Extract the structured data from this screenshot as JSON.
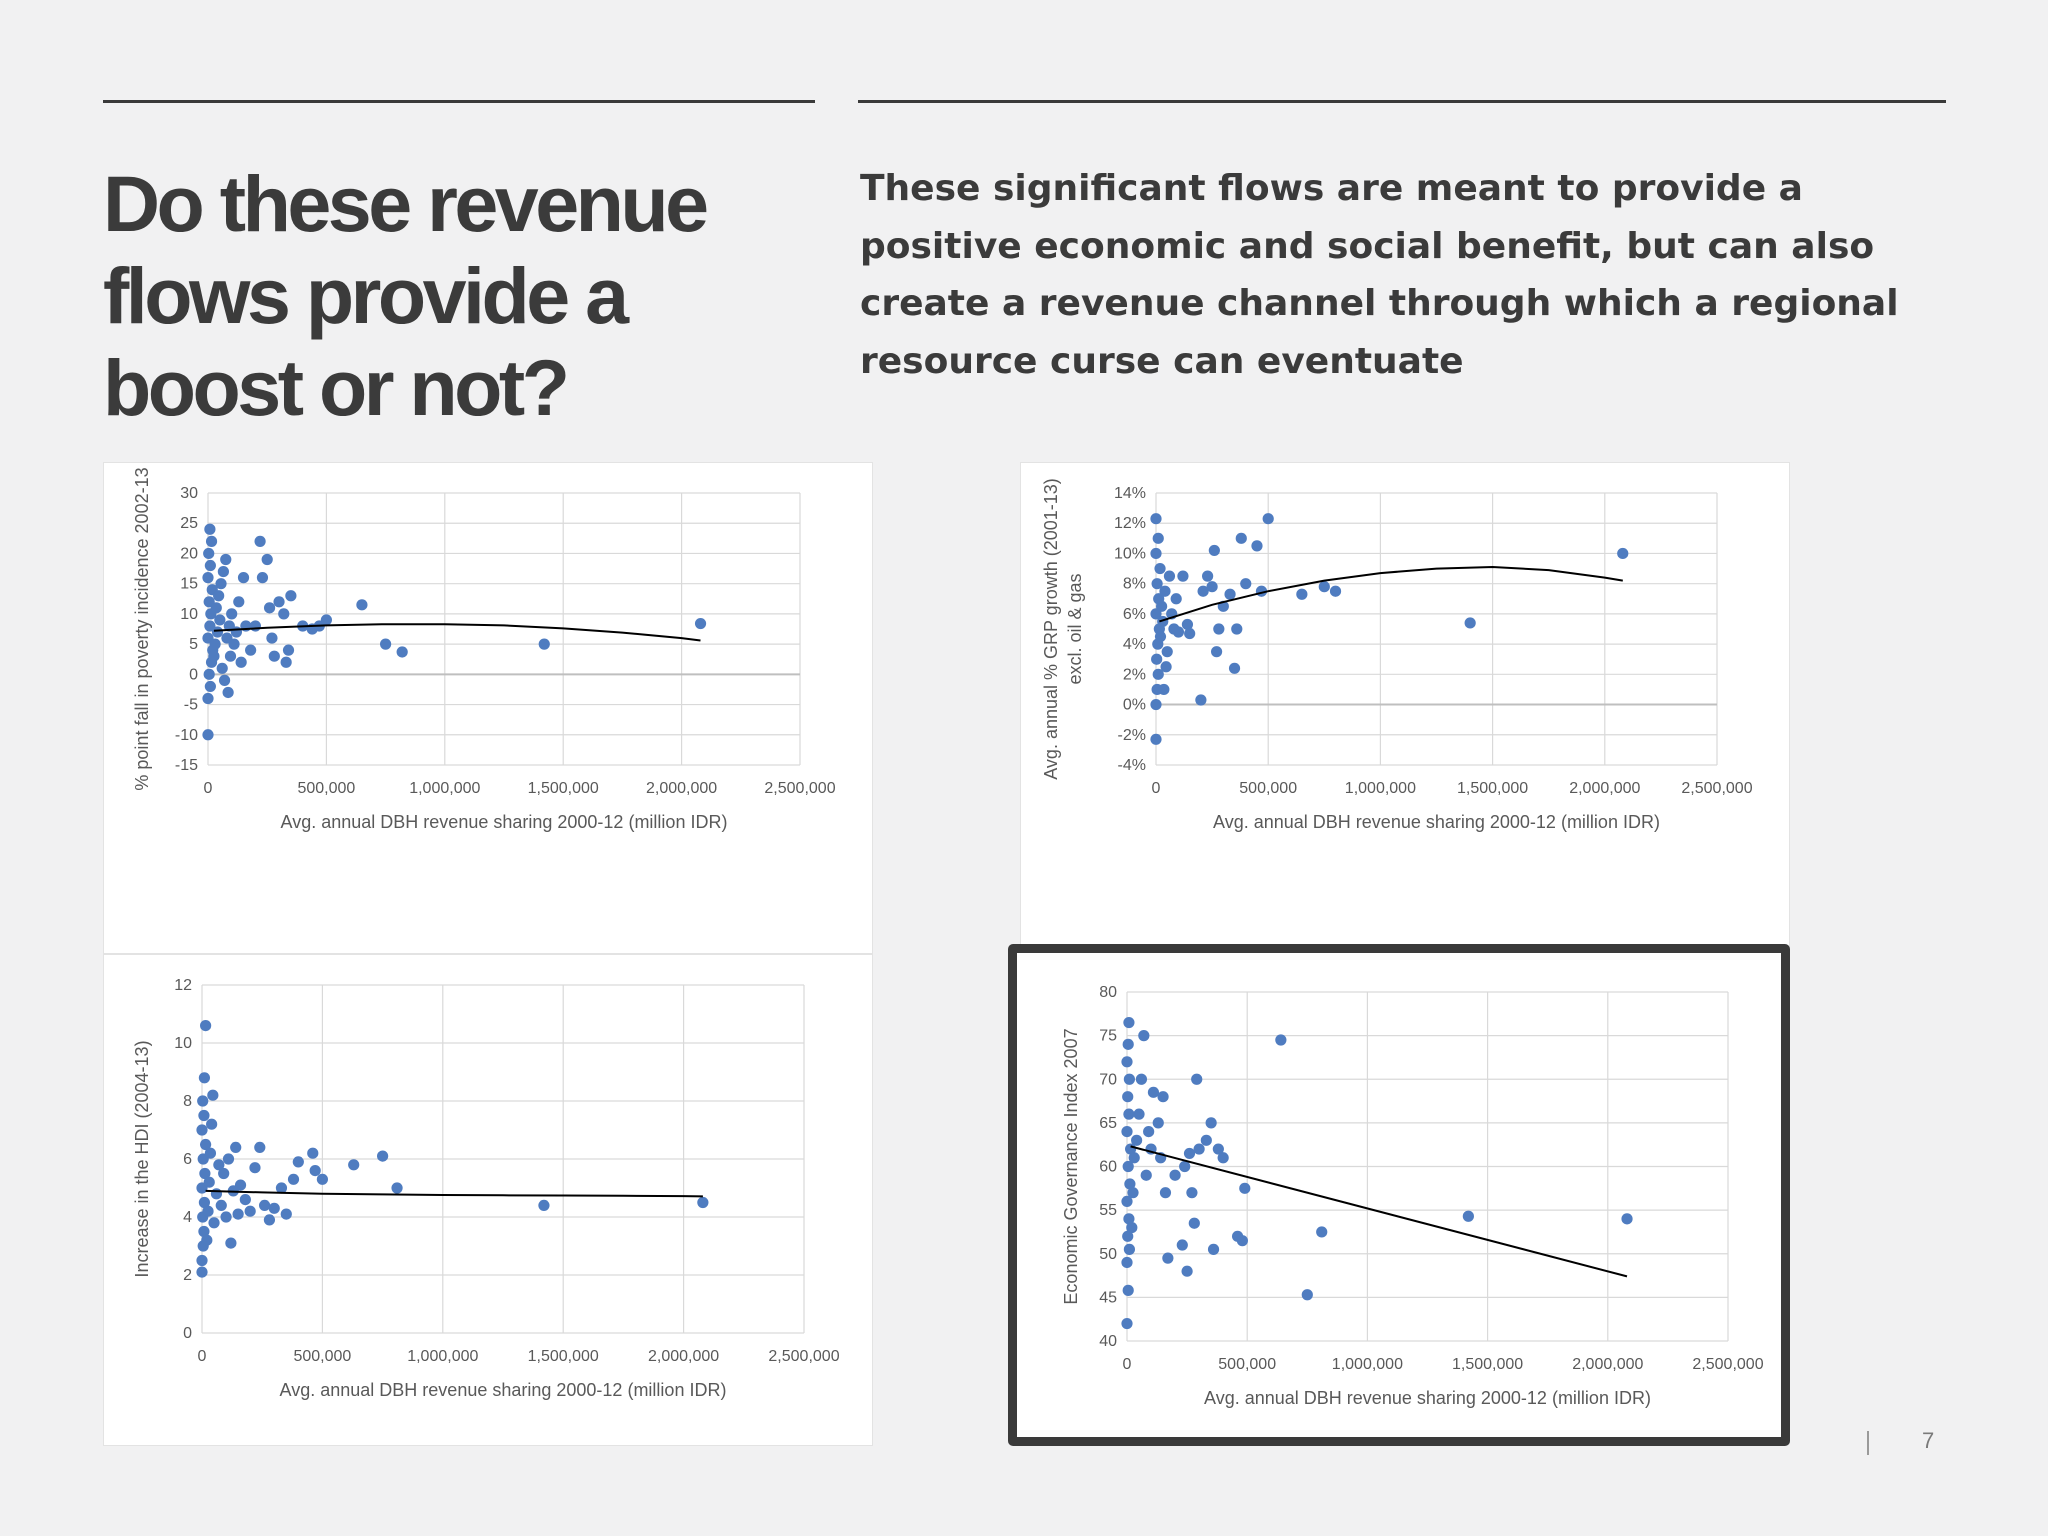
{
  "slide": {
    "title": "Do these revenue flows provide a boost or not?",
    "subtitle": "These significant flows are meant to provide a positive economic and social benefit, but can also create a revenue channel through which a regional resource curse can eventuate",
    "page_number": "7",
    "colors": {
      "marker": "#4f7cc0",
      "trend": "#000000",
      "grid": "#d9d9d9",
      "text": "#3b3b3b",
      "highlight_frame": "#3a3a3a"
    }
  },
  "chart_data": [
    {
      "id": "poverty",
      "type": "scatter",
      "xlabel": "Avg. annual DBH revenue sharing 2000-12 (million IDR)",
      "ylabel": "% point fall in poverty incidence 2002-13",
      "xlim": [
        0,
        2500000
      ],
      "ylim": [
        -15,
        30
      ],
      "xticks": [
        0,
        500000,
        1000000,
        1500000,
        2000000,
        2500000
      ],
      "xtick_labels": [
        "0",
        "500,000",
        "1,000,000",
        "1,500,000",
        "2,000,000",
        "2,500,000"
      ],
      "yticks": [
        -15,
        -10,
        -5,
        0,
        5,
        10,
        15,
        20,
        25,
        30
      ],
      "ytick_labels": [
        "-15",
        "-10",
        "-5",
        "0",
        "5",
        "10",
        "15",
        "20",
        "25",
        "30"
      ],
      "grid": true,
      "trendline": {
        "type": "polynomial",
        "x": [
          25000,
          250000,
          500000,
          750000,
          1000000,
          1250000,
          1500000,
          1750000,
          2000000,
          2080000
        ],
        "y": [
          7.2,
          7.7,
          8.1,
          8.3,
          8.3,
          8.1,
          7.6,
          6.9,
          6.0,
          5.6
        ]
      },
      "points": [
        [
          0,
          -10
        ],
        [
          0,
          -4
        ],
        [
          10000,
          -2
        ],
        [
          5000,
          0
        ],
        [
          15000,
          2
        ],
        [
          20000,
          4
        ],
        [
          0,
          6
        ],
        [
          8000,
          8
        ],
        [
          12000,
          10
        ],
        [
          5000,
          12
        ],
        [
          18000,
          14
        ],
        [
          0,
          16
        ],
        [
          10000,
          18
        ],
        [
          3000,
          20
        ],
        [
          15000,
          22
        ],
        [
          8000,
          24
        ],
        [
          25000,
          3
        ],
        [
          30000,
          5
        ],
        [
          40000,
          7
        ],
        [
          50000,
          9
        ],
        [
          35000,
          11
        ],
        [
          45000,
          13
        ],
        [
          60000,
          1
        ],
        [
          70000,
          -1
        ],
        [
          80000,
          6
        ],
        [
          90000,
          8
        ],
        [
          55000,
          15
        ],
        [
          65000,
          17
        ],
        [
          75000,
          19
        ],
        [
          100000,
          10
        ],
        [
          110000,
          5
        ],
        [
          120000,
          7
        ],
        [
          85000,
          -3
        ],
        [
          95000,
          3
        ],
        [
          130000,
          12
        ],
        [
          140000,
          2
        ],
        [
          150000,
          16
        ],
        [
          160000,
          8
        ],
        [
          180000,
          4
        ],
        [
          200000,
          8
        ],
        [
          220000,
          22
        ],
        [
          230000,
          16
        ],
        [
          250000,
          19
        ],
        [
          260000,
          11
        ],
        [
          270000,
          6
        ],
        [
          280000,
          3
        ],
        [
          300000,
          12
        ],
        [
          320000,
          10
        ],
        [
          330000,
          2
        ],
        [
          340000,
          4
        ],
        [
          350000,
          13
        ],
        [
          400000,
          8
        ],
        [
          440000,
          7.5
        ],
        [
          470000,
          8
        ],
        [
          500000,
          9
        ],
        [
          650000,
          11.5
        ],
        [
          750000,
          5
        ],
        [
          820000,
          3.7
        ],
        [
          1420000,
          5
        ],
        [
          2080000,
          8.4
        ]
      ]
    },
    {
      "id": "grp",
      "type": "scatter",
      "xlabel": "Avg. annual DBH revenue sharing 2000-12 (million IDR)",
      "ylabel": "Avg. annual % GRP growth (2001-13) excl. oil & gas",
      "xlim": [
        0,
        2500000
      ],
      "ylim": [
        -4,
        14
      ],
      "xticks": [
        0,
        500000,
        1000000,
        1500000,
        2000000,
        2500000
      ],
      "xtick_labels": [
        "0",
        "500,000",
        "1,000,000",
        "1,500,000",
        "2,000,000",
        "2,500,000"
      ],
      "yticks": [
        -4,
        -2,
        0,
        2,
        4,
        6,
        8,
        10,
        12,
        14
      ],
      "ytick_labels": [
        "-4%",
        "-2%",
        "0%",
        "2%",
        "4%",
        "6%",
        "8%",
        "10%",
        "12%",
        "14%"
      ],
      "grid": true,
      "trendline": {
        "type": "polynomial",
        "x": [
          15000,
          250000,
          500000,
          750000,
          1000000,
          1250000,
          1500000,
          1750000,
          2000000,
          2080000
        ],
        "y": [
          5.5,
          6.6,
          7.5,
          8.2,
          8.7,
          9.0,
          9.1,
          8.9,
          8.4,
          8.2
        ]
      },
      "points": [
        [
          0,
          -2.3
        ],
        [
          0,
          0
        ],
        [
          5000,
          1
        ],
        [
          10000,
          2
        ],
        [
          3000,
          3
        ],
        [
          8000,
          4
        ],
        [
          15000,
          5
        ],
        [
          0,
          6
        ],
        [
          12000,
          7
        ],
        [
          5000,
          8
        ],
        [
          18000,
          9
        ],
        [
          0,
          10
        ],
        [
          10000,
          11
        ],
        [
          0,
          12.3
        ],
        [
          20000,
          4.5
        ],
        [
          25000,
          6.5
        ],
        [
          30000,
          5.5
        ],
        [
          40000,
          7.5
        ],
        [
          50000,
          3.5
        ],
        [
          60000,
          8.5
        ],
        [
          70000,
          6
        ],
        [
          35000,
          1
        ],
        [
          45000,
          2.5
        ],
        [
          80000,
          5
        ],
        [
          90000,
          7
        ],
        [
          100000,
          4.8
        ],
        [
          120000,
          8.5
        ],
        [
          140000,
          5.3
        ],
        [
          150000,
          4.7
        ],
        [
          200000,
          0.3
        ],
        [
          210000,
          7.5
        ],
        [
          230000,
          8.5
        ],
        [
          250000,
          7.8
        ],
        [
          260000,
          10.2
        ],
        [
          270000,
          3.5
        ],
        [
          280000,
          5
        ],
        [
          300000,
          6.5
        ],
        [
          330000,
          7.3
        ],
        [
          350000,
          2.4
        ],
        [
          360000,
          5
        ],
        [
          380000,
          11
        ],
        [
          400000,
          8
        ],
        [
          450000,
          10.5
        ],
        [
          470000,
          7.5
        ],
        [
          500000,
          12.3
        ],
        [
          650000,
          7.3
        ],
        [
          750000,
          7.8
        ],
        [
          800000,
          7.5
        ],
        [
          1400000,
          5.4
        ],
        [
          2080000,
          10
        ]
      ]
    },
    {
      "id": "hdi",
      "type": "scatter",
      "xlabel": "Avg. annual DBH revenue sharing 2000-12 (million IDR)",
      "ylabel": "Increase in the HDI (2004-13)",
      "xlim": [
        0,
        2500000
      ],
      "ylim": [
        0,
        12
      ],
      "xticks": [
        0,
        500000,
        1000000,
        1500000,
        2000000,
        2500000
      ],
      "xtick_labels": [
        "0",
        "500,000",
        "1,000,000",
        "1,500,000",
        "2,000,000",
        "2,500,000"
      ],
      "yticks": [
        0,
        2,
        4,
        6,
        8,
        10,
        12
      ],
      "ytick_labels": [
        "0",
        "2",
        "4",
        "6",
        "8",
        "10",
        "12"
      ],
      "grid": true,
      "trendline": {
        "type": "polynomial",
        "x": [
          15000,
          250000,
          500000,
          750000,
          1000000,
          1250000,
          1500000,
          1750000,
          2000000,
          2080000
        ],
        "y": [
          4.9,
          4.85,
          4.8,
          4.78,
          4.76,
          4.75,
          4.74,
          4.73,
          4.72,
          4.71
        ]
      },
      "points": [
        [
          0,
          2.1
        ],
        [
          0,
          2.5
        ],
        [
          5000,
          3
        ],
        [
          8000,
          3.5
        ],
        [
          3000,
          4
        ],
        [
          10000,
          4.5
        ],
        [
          0,
          5
        ],
        [
          12000,
          5.5
        ],
        [
          5000,
          6
        ],
        [
          15000,
          6.5
        ],
        [
          0,
          7
        ],
        [
          8000,
          7.5
        ],
        [
          3000,
          8
        ],
        [
          10000,
          8.8
        ],
        [
          15000,
          10.6
        ],
        [
          20000,
          3.2
        ],
        [
          25000,
          4.2
        ],
        [
          30000,
          5.2
        ],
        [
          35000,
          6.2
        ],
        [
          40000,
          7.2
        ],
        [
          45000,
          8.2
        ],
        [
          50000,
          3.8
        ],
        [
          60000,
          4.8
        ],
        [
          70000,
          5.8
        ],
        [
          80000,
          4.4
        ],
        [
          90000,
          5.5
        ],
        [
          100000,
          4
        ],
        [
          110000,
          6
        ],
        [
          120000,
          3.1
        ],
        [
          130000,
          4.9
        ],
        [
          140000,
          6.4
        ],
        [
          150000,
          4.1
        ],
        [
          160000,
          5.1
        ],
        [
          180000,
          4.6
        ],
        [
          200000,
          4.2
        ],
        [
          220000,
          5.7
        ],
        [
          240000,
          6.4
        ],
        [
          260000,
          4.4
        ],
        [
          280000,
          3.9
        ],
        [
          300000,
          4.3
        ],
        [
          330000,
          5
        ],
        [
          350000,
          4.1
        ],
        [
          380000,
          5.3
        ],
        [
          400000,
          5.9
        ],
        [
          460000,
          6.2
        ],
        [
          470000,
          5.6
        ],
        [
          500000,
          5.3
        ],
        [
          630000,
          5.8
        ],
        [
          750000,
          6.1
        ],
        [
          810000,
          5
        ],
        [
          1420000,
          4.4
        ],
        [
          2080000,
          4.5
        ]
      ]
    },
    {
      "id": "governance",
      "type": "scatter",
      "xlabel": "Avg. annual DBH revenue sharing 2000-12 (million IDR)",
      "ylabel": "Economic Governance Index 2007",
      "xlim": [
        0,
        2500000
      ],
      "ylim": [
        40,
        80
      ],
      "xticks": [
        0,
        500000,
        1000000,
        1500000,
        2000000,
        2500000
      ],
      "xtick_labels": [
        "0",
        "500,000",
        "1,000,000",
        "1,500,000",
        "2,000,000",
        "2,500,000"
      ],
      "yticks": [
        40,
        45,
        50,
        55,
        60,
        65,
        70,
        75,
        80
      ],
      "ytick_labels": [
        "40",
        "45",
        "50",
        "55",
        "60",
        "65",
        "70",
        "75",
        "80"
      ],
      "grid": true,
      "trendline": {
        "type": "linear",
        "x": [
          15000,
          2080000
        ],
        "y": [
          62.3,
          47.4
        ]
      },
      "points": [
        [
          0,
          42
        ],
        [
          5000,
          45.8
        ],
        [
          0,
          49
        ],
        [
          10000,
          50.5
        ],
        [
          3000,
          52
        ],
        [
          8000,
          54
        ],
        [
          0,
          56
        ],
        [
          12000,
          58
        ],
        [
          5000,
          60
        ],
        [
          15000,
          62
        ],
        [
          0,
          64
        ],
        [
          8000,
          66
        ],
        [
          3000,
          68
        ],
        [
          10000,
          70
        ],
        [
          0,
          72
        ],
        [
          5000,
          74
        ],
        [
          8000,
          76.5
        ],
        [
          20000,
          53
        ],
        [
          25000,
          57
        ],
        [
          30000,
          61
        ],
        [
          40000,
          63
        ],
        [
          50000,
          66
        ],
        [
          60000,
          70
        ],
        [
          70000,
          75
        ],
        [
          80000,
          59
        ],
        [
          90000,
          64
        ],
        [
          100000,
          62
        ],
        [
          110000,
          68.5
        ],
        [
          130000,
          65
        ],
        [
          140000,
          61
        ],
        [
          150000,
          68
        ],
        [
          160000,
          57
        ],
        [
          170000,
          49.5
        ],
        [
          200000,
          59
        ],
        [
          230000,
          51
        ],
        [
          240000,
          60
        ],
        [
          250000,
          48
        ],
        [
          260000,
          61.5
        ],
        [
          270000,
          57
        ],
        [
          280000,
          53.5
        ],
        [
          290000,
          70
        ],
        [
          300000,
          62
        ],
        [
          330000,
          63
        ],
        [
          350000,
          65
        ],
        [
          360000,
          50.5
        ],
        [
          380000,
          62
        ],
        [
          400000,
          61
        ],
        [
          460000,
          52
        ],
        [
          480000,
          51.5
        ],
        [
          490000,
          57.5
        ],
        [
          640000,
          74.5
        ],
        [
          750000,
          45.3
        ],
        [
          810000,
          52.5
        ],
        [
          1420000,
          54.3
        ],
        [
          2080000,
          54
        ]
      ]
    }
  ]
}
